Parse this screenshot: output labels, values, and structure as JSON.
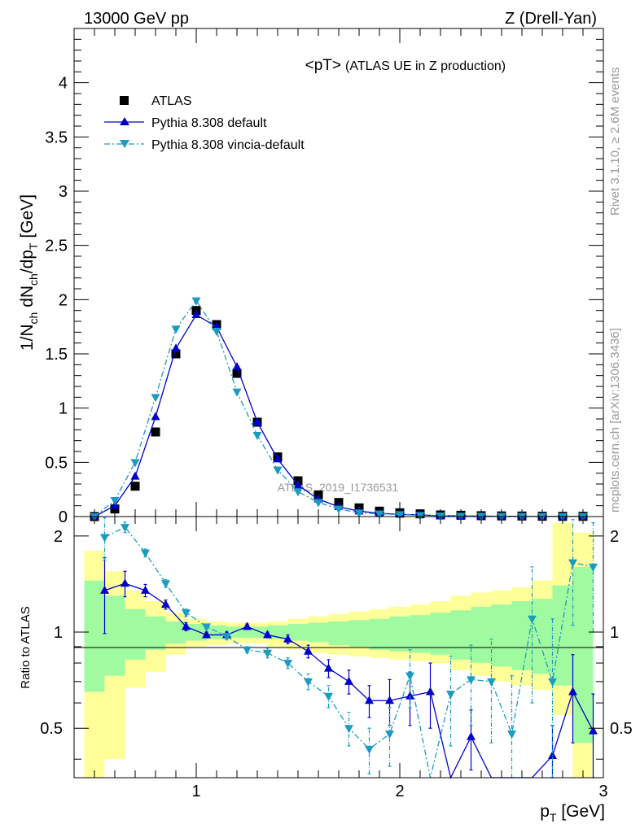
{
  "header": {
    "energy": "13000 GeV pp",
    "process": "Z (Drell-Yan)"
  },
  "side": {
    "rivet": "Rivet 3.1.10, ≥ 2.6M events",
    "mcplots": "mcplots.cern.ch [arXiv:1306.3436]"
  },
  "chart_data": [
    {
      "type": "scatter",
      "title": "<pT> (ATLAS UE in Z production)",
      "title_main": "<pT>",
      "title_sub": "(ATLAS UE in Z production)",
      "watermark": "ATLAS_2019_I1736531",
      "xlabel": "p_T [GeV]",
      "ylabel": "1/N_ch dN_ch/dp_T [GeV]",
      "xlim": [
        0.4,
        3.0
      ],
      "ylim": [
        0,
        4.5
      ],
      "xticks": [
        "1",
        "2",
        "3"
      ],
      "yticks": [
        "0",
        "0.5",
        "1",
        "1.5",
        "2",
        "2.5",
        "3",
        "3.5",
        "4"
      ],
      "legend_position": "top-left",
      "series": [
        {
          "name": "ATLAS",
          "style": "black-square",
          "color": "#000000",
          "x": [
            0.5,
            0.6,
            0.7,
            0.8,
            0.9,
            1.0,
            1.1,
            1.2,
            1.3,
            1.4,
            1.5,
            1.6,
            1.7,
            1.8,
            1.9,
            2.0,
            2.1,
            2.2,
            2.3,
            2.4,
            2.5,
            2.6,
            2.7,
            2.8,
            2.9
          ],
          "y": [
            0.0,
            0.07,
            0.28,
            0.78,
            1.5,
            1.9,
            1.77,
            1.32,
            0.87,
            0.55,
            0.33,
            0.2,
            0.13,
            0.08,
            0.05,
            0.035,
            0.025,
            0.015,
            0.012,
            0.008,
            0.006,
            0.005,
            0.003,
            0.002,
            0.002
          ]
        },
        {
          "name": "Pythia 8.308 default",
          "style": "solid-triangle-up",
          "color": "#0000cc",
          "x": [
            0.5,
            0.6,
            0.7,
            0.8,
            0.9,
            1.0,
            1.1,
            1.2,
            1.3,
            1.4,
            1.5,
            1.6,
            1.7,
            1.8,
            1.9,
            2.0,
            2.1,
            2.2,
            2.3,
            2.4,
            2.5,
            2.6,
            2.7,
            2.8,
            2.9
          ],
          "y": [
            0.0,
            0.1,
            0.37,
            0.92,
            1.55,
            1.86,
            1.75,
            1.38,
            0.87,
            0.53,
            0.29,
            0.16,
            0.09,
            0.05,
            0.03,
            0.02,
            0.015,
            0.008,
            0.006,
            0.004,
            0.003,
            0.002,
            0.001,
            0.001,
            0.001
          ]
        },
        {
          "name": "Pythia 8.308 vincia-default",
          "style": "dashdot-triangle-down",
          "color": "#1a9bbf",
          "x": [
            0.5,
            0.6,
            0.7,
            0.8,
            0.9,
            1.0,
            1.1,
            1.2,
            1.3,
            1.4,
            1.5,
            1.6,
            1.7,
            1.8,
            1.9,
            2.0,
            2.1,
            2.2,
            2.3,
            2.4,
            2.5,
            2.6,
            2.7,
            2.8,
            2.9
          ],
          "y": [
            0.0,
            0.15,
            0.5,
            1.1,
            1.73,
            1.99,
            1.71,
            1.15,
            0.75,
            0.43,
            0.23,
            0.13,
            0.07,
            0.035,
            0.025,
            0.02,
            0.012,
            0.007,
            0.005,
            0.004,
            0.003,
            0.002,
            0.002,
            0.001,
            0.001
          ]
        }
      ]
    },
    {
      "type": "scatter",
      "ylabel": "Ratio to ATLAS",
      "xlim": [
        0.4,
        3.0
      ],
      "ylim": [
        0.35,
        2.3
      ],
      "log_y": true,
      "yticks": [
        "0.5",
        "1",
        "2"
      ],
      "bands": {
        "edges": [
          0.45,
          0.55,
          0.65,
          0.75,
          0.85,
          0.95,
          1.05,
          1.15,
          1.25,
          1.35,
          1.45,
          1.55,
          1.65,
          1.75,
          1.85,
          1.95,
          2.05,
          2.15,
          2.25,
          2.35,
          2.45,
          2.55,
          2.65,
          2.75,
          2.85,
          2.95
        ],
        "inner_low": [
          0.65,
          0.73,
          0.82,
          0.88,
          0.92,
          0.94,
          0.95,
          0.96,
          0.96,
          0.95,
          0.94,
          0.93,
          0.91,
          0.9,
          0.88,
          0.87,
          0.86,
          0.85,
          0.82,
          0.8,
          0.78,
          0.76,
          0.74,
          0.68,
          0.45
        ],
        "inner_high": [
          1.45,
          1.3,
          1.18,
          1.12,
          1.08,
          1.06,
          1.05,
          1.04,
          1.04,
          1.05,
          1.06,
          1.07,
          1.08,
          1.09,
          1.1,
          1.12,
          1.13,
          1.15,
          1.17,
          1.2,
          1.22,
          1.25,
          1.27,
          1.4,
          1.6
        ],
        "outer_low": [
          0.3,
          0.4,
          0.67,
          0.75,
          0.85,
          0.9,
          0.91,
          0.92,
          0.92,
          0.9,
          0.88,
          0.86,
          0.85,
          0.84,
          0.83,
          0.82,
          0.81,
          0.8,
          0.76,
          0.73,
          0.7,
          0.68,
          0.66,
          0.55,
          0.3
        ],
        "outer_high": [
          1.8,
          1.55,
          1.35,
          1.25,
          1.15,
          1.1,
          1.08,
          1.07,
          1.07,
          1.08,
          1.1,
          1.12,
          1.14,
          1.16,
          1.18,
          1.2,
          1.22,
          1.25,
          1.3,
          1.33,
          1.35,
          1.38,
          1.45,
          2.2,
          2.05
        ]
      },
      "series": [
        {
          "name": "Pythia 8.308 default",
          "color": "#0000cc",
          "x": [
            0.55,
            0.65,
            0.75,
            0.85,
            0.95,
            1.05,
            1.15,
            1.25,
            1.35,
            1.45,
            1.55,
            1.65,
            1.75,
            1.85,
            1.95,
            2.05,
            2.15,
            2.25,
            2.35,
            2.45,
            2.55,
            2.65,
            2.75,
            2.85,
            2.95
          ],
          "y": [
            1.35,
            1.42,
            1.35,
            1.22,
            1.04,
            0.98,
            0.98,
            1.04,
            0.98,
            0.95,
            0.87,
            0.77,
            0.7,
            0.61,
            0.61,
            0.63,
            0.65,
            0.33,
            0.47,
            0.32,
            0.33,
            0.33,
            0.41,
            0.65,
            0.49
          ],
          "yerr": [
            0.36,
            0.13,
            0.06,
            0.04,
            0.03,
            0.02,
            0.02,
            0.02,
            0.02,
            0.03,
            0.04,
            0.05,
            0.06,
            0.07,
            0.1,
            0.12,
            0.15,
            0.0,
            0.1,
            0.0,
            0.0,
            0.0,
            0.1,
            0.2,
            0.15
          ]
        },
        {
          "name": "Pythia 8.308 vincia-default",
          "color": "#1a9bbf",
          "x": [
            0.55,
            0.65,
            0.75,
            0.85,
            0.95,
            1.05,
            1.15,
            1.25,
            1.35,
            1.45,
            1.55,
            1.65,
            1.75,
            1.85,
            1.95,
            2.05,
            2.15,
            2.25,
            2.35,
            2.45,
            2.55,
            2.65,
            2.75,
            2.85,
            2.95
          ],
          "y": [
            1.98,
            2.13,
            1.77,
            1.42,
            1.15,
            1.04,
            0.97,
            0.88,
            0.86,
            0.8,
            0.7,
            0.63,
            0.5,
            0.43,
            0.48,
            0.73,
            0.33,
            0.64,
            0.71,
            0.7,
            0.48,
            1.1,
            0.7,
            1.65,
            1.6
          ],
          "yerr": [
            0.3,
            0.08,
            0.05,
            0.04,
            0.03,
            0.02,
            0.02,
            0.02,
            0.03,
            0.03,
            0.04,
            0.05,
            0.06,
            0.07,
            0.1,
            0.15,
            0.0,
            0.2,
            0.2,
            0.25,
            0.25,
            0.5,
            0.4,
            0.6,
            0.6
          ]
        }
      ]
    }
  ],
  "colors": {
    "band_inner": "#a0fba0",
    "band_outer": "#ffff99",
    "atlas": "#000000",
    "default": "#0000cc",
    "vincia": "#1a9bbf",
    "watermark": "#999999"
  }
}
